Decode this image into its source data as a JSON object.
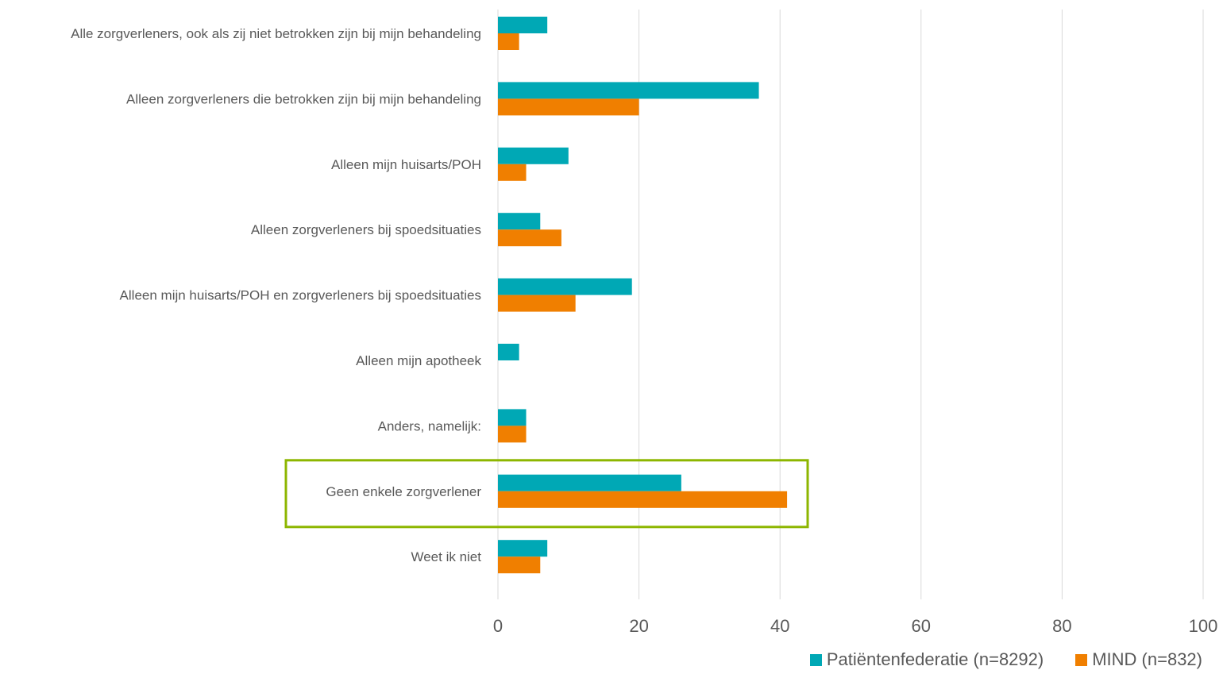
{
  "chart_data": {
    "type": "bar",
    "orientation": "horizontal",
    "categories": [
      "Alle zorgverleners, ook als zij niet betrokken zijn bij mijn behandeling",
      "Alleen zorgverleners die betrokken zijn bij mijn behandeling",
      "Alleen mijn huisarts/POH",
      "Alleen zorgverleners bij spoedsituaties",
      "Alleen mijn huisarts/POH en zorgverleners bij spoedsituaties",
      "Alleen mijn apotheek",
      "Anders, namelijk:",
      "Geen enkele zorgverlener",
      "Weet ik niet"
    ],
    "series": [
      {
        "name": "Patiëntenfederatie (n=8292)",
        "color": "#00A8B5",
        "values": [
          7,
          37,
          10,
          6,
          19,
          3,
          4,
          26,
          7
        ]
      },
      {
        "name": "MIND (n=832)",
        "color": "#F07F00",
        "values": [
          3,
          20,
          4,
          9,
          11,
          0,
          4,
          41,
          6
        ]
      }
    ],
    "xlim": [
      0,
      100
    ],
    "xticks": [
      "0",
      "20",
      "40",
      "60",
      "80",
      "100"
    ],
    "grid": true,
    "legend_position": "bottom-right",
    "highlight": {
      "category": "Geen enkele zorgverlener",
      "color": "#8DB600"
    }
  }
}
